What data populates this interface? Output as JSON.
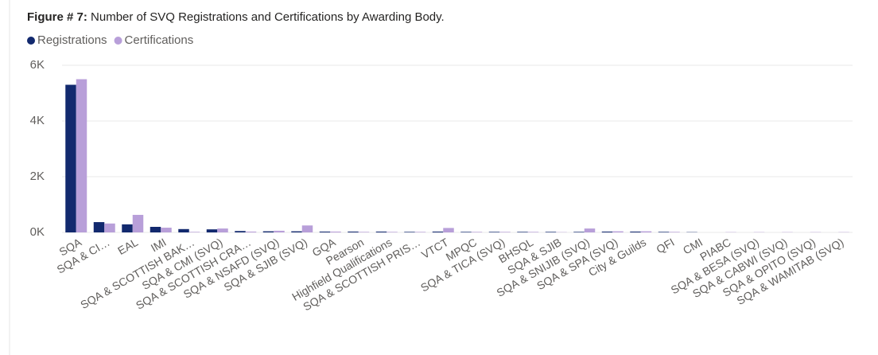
{
  "chart_data": {
    "type": "bar",
    "title_label": "Figure # 7:",
    "title": "Number of SVQ Registrations and Certifications by Awarding Body.",
    "categories": [
      "SQA",
      "SQA & CI…",
      "EAL",
      "IMI",
      "SQA & SCOTTISH BAK…",
      "SQA & CMI (SVQ)",
      "SQA & SCOTTISH CRA…",
      "SQA & NSAFD (SVQ)",
      "SQA & SJIB (SVQ)",
      "GQA",
      "Pearson",
      "Highfield Qualifications",
      "SQA & SCOTTISH PRIS…",
      "VTCT",
      "MPQC",
      "SQA & TICA (SVQ)",
      "BHSQL",
      "SQA & SJIB",
      "SQA & SNIJIB (SVQ)",
      "SQA & SPA (SVQ)",
      "City & Guilds",
      "QFI",
      "CMI",
      "PIABC",
      "SQA & BESA (SVQ)",
      "SQA & CABWI (SVQ)",
      "SQA & OPITO (SVQ)",
      "SQA & WAMITAB (SVQ)"
    ],
    "series": [
      {
        "name": "Registrations",
        "color": "#12296e",
        "values": [
          5300,
          370,
          290,
          200,
          120,
          110,
          50,
          40,
          40,
          30,
          30,
          30,
          20,
          30,
          20,
          20,
          20,
          20,
          20,
          30,
          30,
          20,
          10,
          0,
          0,
          0,
          0,
          0
        ]
      },
      {
        "name": "Certifications",
        "color": "#b89fd9",
        "values": [
          5500,
          320,
          630,
          170,
          20,
          140,
          30,
          60,
          250,
          30,
          20,
          20,
          20,
          160,
          20,
          20,
          20,
          10,
          140,
          40,
          40,
          20,
          0,
          10,
          10,
          10,
          10,
          10
        ]
      }
    ],
    "ylim": [
      0,
      6000
    ],
    "yticks": [
      {
        "value": 0,
        "label": "0K"
      },
      {
        "value": 2000,
        "label": "2K"
      },
      {
        "value": 4000,
        "label": "4K"
      },
      {
        "value": 6000,
        "label": "6K"
      }
    ],
    "grid": true
  }
}
